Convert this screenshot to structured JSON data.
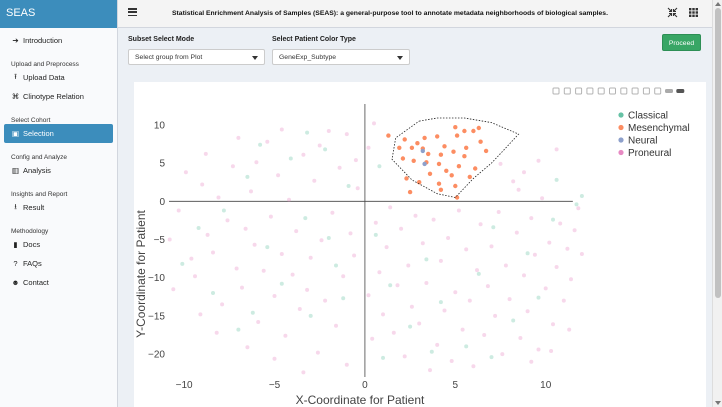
{
  "brand": {
    "title": "SEAS"
  },
  "sidebar": {
    "items": [
      {
        "type": "link",
        "label": "Introduction",
        "icon": "arrow-right-icon",
        "glyph": "➔"
      },
      {
        "type": "section",
        "label": "Upload and Preprocess"
      },
      {
        "type": "link",
        "label": "Upload Data",
        "icon": "upload-icon",
        "glyph": "⭱"
      },
      {
        "type": "link",
        "label": "Clinotype Relation",
        "icon": "network-icon",
        "glyph": "⌘"
      },
      {
        "type": "section",
        "label": "Select Cohort"
      },
      {
        "type": "link",
        "label": "Selection",
        "icon": "image-icon",
        "glyph": "▣",
        "active": true
      },
      {
        "type": "section",
        "label": "Config and Analyze"
      },
      {
        "type": "link",
        "label": "Analysis",
        "icon": "chart-icon",
        "glyph": "▥"
      },
      {
        "type": "section",
        "label": "Insights and Report"
      },
      {
        "type": "link",
        "label": "Result",
        "icon": "download-icon",
        "glyph": "⭳"
      },
      {
        "type": "section",
        "label": "Methodology"
      },
      {
        "type": "link",
        "label": "Docs",
        "icon": "book-icon",
        "glyph": "▮"
      },
      {
        "type": "link",
        "label": "FAQs",
        "icon": "question-icon",
        "glyph": "?"
      },
      {
        "type": "link",
        "label": "Contact",
        "icon": "users-icon",
        "glyph": "☻"
      }
    ]
  },
  "header": {
    "title": "Statistical Enrichment Analysis of Samples (SEAS): a general-purpose tool to annotate metadata neighborhoods of biological samples."
  },
  "controls": {
    "subset_label": "Subset Select Mode",
    "subset_value": "Select group from Plot",
    "color_label": "Select Patient Color Type",
    "color_value": "GeneExp_Subtype",
    "proceed_label": "Proceed"
  },
  "colors": {
    "accent": "#3c8dbc",
    "proceed": "#38a665",
    "classical": "#66c2a5",
    "mesenchymal": "#fc8d62",
    "neural": "#8da0cb",
    "proneural": "#e78ac3"
  },
  "chart_data": {
    "type": "scatter",
    "xlabel": "X-Coordinate for Patient",
    "ylabel": "Y-Coordinate for Patient",
    "xlim": [
      -11.5,
      13.5
    ],
    "ylim": [
      -23,
      13
    ],
    "xticks": [
      -10,
      -5,
      0,
      5,
      10
    ],
    "yticks": [
      10,
      5,
      0,
      -5,
      -10,
      -15,
      -20
    ],
    "grid": false,
    "zero_lines": true,
    "legend": {
      "position": "top-right",
      "entries": [
        "Classical",
        "Mesenchymal",
        "Neural",
        "Proneural"
      ]
    },
    "lasso": [
      [
        3.0,
        10.5
      ],
      [
        4.0,
        10.9
      ],
      [
        5.5,
        10.9
      ],
      [
        7.0,
        10.3
      ],
      [
        8.5,
        8.8
      ],
      [
        7.8,
        7.0
      ],
      [
        7.0,
        5.0
      ],
      [
        6.0,
        3.0
      ],
      [
        5.0,
        0.5
      ],
      [
        4.0,
        1.0
      ],
      [
        2.6,
        2.8
      ],
      [
        1.5,
        5.5
      ],
      [
        1.7,
        8.3
      ]
    ],
    "series": [
      {
        "name": "Mesenchymal",
        "selected": true,
        "points": [
          [
            2.2,
            8.1
          ],
          [
            3.3,
            8.3
          ],
          [
            4.0,
            8.5
          ],
          [
            5.1,
            8.6
          ],
          [
            6.0,
            9.2
          ],
          [
            6.3,
            9.6
          ],
          [
            5.0,
            9.7
          ],
          [
            1.9,
            7.0
          ],
          [
            2.6,
            7.0
          ],
          [
            3.2,
            6.9
          ],
          [
            4.4,
            7.2
          ],
          [
            5.6,
            7.0
          ],
          [
            6.7,
            6.6
          ],
          [
            3.5,
            6.2
          ],
          [
            4.2,
            6.1
          ],
          [
            4.9,
            6.5
          ],
          [
            5.5,
            5.9
          ],
          [
            2.1,
            5.6
          ],
          [
            2.7,
            5.3
          ],
          [
            3.4,
            5.1
          ],
          [
            4.1,
            4.9
          ],
          [
            5.2,
            4.6
          ],
          [
            6.1,
            4.3
          ],
          [
            4.5,
            4.0
          ],
          [
            3.6,
            3.6
          ],
          [
            4.8,
            3.4
          ],
          [
            5.8,
            3.2
          ],
          [
            2.3,
            3.0
          ],
          [
            3.0,
            2.5
          ],
          [
            4.1,
            2.3
          ],
          [
            5.0,
            2.0
          ],
          [
            4.2,
            1.5
          ],
          [
            2.5,
            1.2
          ],
          [
            5.1,
            0.5
          ],
          [
            6.4,
            7.8
          ],
          [
            1.3,
            8.6
          ],
          [
            5.5,
            9.2
          ],
          [
            2.9,
            7.6
          ]
        ]
      },
      {
        "name": "Neural",
        "selected": true,
        "points": [
          [
            3.2,
            6.6
          ],
          [
            3.3,
            4.9
          ]
        ]
      },
      {
        "name": "Classical",
        "selected": false,
        "points": [
          [
            -9.2,
            -3.5
          ],
          [
            -7.8,
            -1.2
          ],
          [
            -6.5,
            3.2
          ],
          [
            -5.4,
            -6.0
          ],
          [
            -4.1,
            5.6
          ],
          [
            -3.3,
            -2.2
          ],
          [
            -2.2,
            6.8
          ],
          [
            -1.6,
            -8.4
          ],
          [
            -0.9,
            2.0
          ],
          [
            0.6,
            -4.4
          ],
          [
            1.4,
            -11.0
          ],
          [
            2.5,
            -16.4
          ],
          [
            3.4,
            -7.6
          ],
          [
            4.2,
            -13.2
          ],
          [
            5.6,
            -19.0
          ],
          [
            6.3,
            -9.5
          ],
          [
            7.1,
            -3.4
          ],
          [
            8.2,
            -15.6
          ],
          [
            9.0,
            -6.8
          ],
          [
            10.4,
            -2.4
          ],
          [
            11.7,
            -0.4
          ],
          [
            12.0,
            0.7
          ],
          [
            10.6,
            2.8
          ],
          [
            -10.1,
            -8.2
          ],
          [
            -8.4,
            -12.0
          ],
          [
            -6.2,
            -14.6
          ],
          [
            -4.6,
            -10.8
          ],
          [
            -3.0,
            -15.0
          ],
          [
            -2.0,
            -4.8
          ],
          [
            1.0,
            -20.5
          ],
          [
            3.7,
            -19.7
          ],
          [
            7.0,
            -20.4
          ],
          [
            9.6,
            -12.6
          ],
          [
            -7.0,
            -16.8
          ],
          [
            -1.2,
            -12.7
          ],
          [
            0.8,
            4.6
          ],
          [
            -3.2,
            9.0
          ],
          [
            -5.8,
            7.4
          ]
        ]
      },
      {
        "name": "Proneural",
        "selected": false,
        "points": [
          [
            -10.8,
            -5.0
          ],
          [
            -10.3,
            -1.2
          ],
          [
            -9.6,
            -7.5
          ],
          [
            -9.4,
            -9.8
          ],
          [
            -9.0,
            2.2
          ],
          [
            -8.7,
            -4.4
          ],
          [
            -8.4,
            -6.7
          ],
          [
            -8.1,
            0.5
          ],
          [
            -7.9,
            -13.5
          ],
          [
            -7.6,
            -2.5
          ],
          [
            -7.3,
            4.6
          ],
          [
            -7.1,
            -8.8
          ],
          [
            -6.8,
            -11.3
          ],
          [
            -6.6,
            -3.6
          ],
          [
            -6.3,
            1.3
          ],
          [
            -6.1,
            -5.7
          ],
          [
            -5.9,
            -15.8
          ],
          [
            -5.6,
            -9.1
          ],
          [
            -5.4,
            7.8
          ],
          [
            -5.2,
            -2.0
          ],
          [
            -5.0,
            -12.4
          ],
          [
            -4.8,
            3.4
          ],
          [
            -4.6,
            -6.9
          ],
          [
            -4.4,
            -17.6
          ],
          [
            -4.2,
            0.2
          ],
          [
            -4.0,
            -9.6
          ],
          [
            -3.8,
            -3.9
          ],
          [
            -3.6,
            -14.1
          ],
          [
            -3.4,
            6.1
          ],
          [
            -3.2,
            -11.6
          ],
          [
            -3.0,
            -7.4
          ],
          [
            -2.8,
            2.7
          ],
          [
            -2.6,
            -19.8
          ],
          [
            -2.4,
            -5.1
          ],
          [
            -2.2,
            -13.0
          ],
          [
            -2.0,
            9.2
          ],
          [
            -1.8,
            -1.5
          ],
          [
            -1.6,
            -16.3
          ],
          [
            -1.4,
            4.4
          ],
          [
            -1.2,
            -9.8
          ],
          [
            -1.0,
            -21.4
          ],
          [
            -0.8,
            -4.2
          ],
          [
            -0.6,
            -7.1
          ],
          [
            -0.4,
            1.7
          ],
          [
            0.2,
            -12.3
          ],
          [
            0.4,
            -18.0
          ],
          [
            0.6,
            -2.8
          ],
          [
            0.8,
            -9.3
          ],
          [
            1.0,
            -14.8
          ],
          [
            1.2,
            -6.0
          ],
          [
            1.4,
            -0.8
          ],
          [
            1.6,
            -17.2
          ],
          [
            1.8,
            -11.0
          ],
          [
            2.0,
            -3.6
          ],
          [
            2.2,
            -20.3
          ],
          [
            2.4,
            -8.4
          ],
          [
            2.6,
            -13.8
          ],
          [
            2.8,
            -1.9
          ],
          [
            3.0,
            -16.0
          ],
          [
            3.2,
            -5.5
          ],
          [
            3.4,
            -10.7
          ],
          [
            3.6,
            -22.1
          ],
          [
            3.8,
            -2.4
          ],
          [
            4.0,
            -18.8
          ],
          [
            4.2,
            -7.8
          ],
          [
            4.4,
            -14.3
          ],
          [
            4.6,
            -4.8
          ],
          [
            4.8,
            -20.9
          ],
          [
            5.0,
            -11.9
          ],
          [
            5.2,
            -1.2
          ],
          [
            5.4,
            -16.8
          ],
          [
            5.6,
            -6.3
          ],
          [
            5.8,
            -13.0
          ],
          [
            6.0,
            -21.6
          ],
          [
            6.2,
            -9.0
          ],
          [
            6.4,
            -3.0
          ],
          [
            6.6,
            -17.5
          ],
          [
            6.8,
            -11.1
          ],
          [
            7.0,
            -5.9
          ],
          [
            7.2,
            -15.0
          ],
          [
            7.4,
            -1.4
          ],
          [
            7.6,
            -20.0
          ],
          [
            7.8,
            -8.4
          ],
          [
            8.0,
            -12.8
          ],
          [
            8.2,
            2.6
          ],
          [
            8.4,
            -4.1
          ],
          [
            8.6,
            -17.9
          ],
          [
            8.8,
            -9.7
          ],
          [
            9.0,
            -14.4
          ],
          [
            9.2,
            -2.2
          ],
          [
            9.4,
            -7.0
          ],
          [
            9.6,
            -19.4
          ],
          [
            9.8,
            0.4
          ],
          [
            10.0,
            -11.4
          ],
          [
            10.2,
            -5.4
          ],
          [
            10.4,
            -16.1
          ],
          [
            10.6,
            -8.6
          ],
          [
            10.8,
            -2.9
          ],
          [
            11.0,
            -13.0
          ],
          [
            11.2,
            -6.2
          ],
          [
            11.4,
            -10.2
          ],
          [
            11.6,
            -3.8
          ],
          [
            11.8,
            -0.9
          ],
          [
            12.0,
            -6.9
          ],
          [
            8.8,
            3.8
          ],
          [
            9.6,
            5.3
          ],
          [
            10.6,
            6.8
          ],
          [
            7.5,
            4.9
          ],
          [
            8.5,
            1.5
          ],
          [
            -8.8,
            6.2
          ],
          [
            -7.0,
            8.3
          ],
          [
            -6.0,
            5.1
          ],
          [
            -4.6,
            9.4
          ],
          [
            -2.5,
            7.3
          ],
          [
            -1.0,
            8.8
          ],
          [
            -0.5,
            5.4
          ],
          [
            0.2,
            7.0
          ],
          [
            0.5,
            10.2
          ],
          [
            -9.9,
            3.8
          ],
          [
            -10.6,
            -11.5
          ],
          [
            -9.1,
            -14.8
          ],
          [
            -8.2,
            -17.2
          ],
          [
            -6.5,
            -19.1
          ],
          [
            -5.0,
            -20.6
          ],
          [
            -3.4,
            -22.4
          ],
          [
            9.2,
            -21.0
          ],
          [
            10.3,
            -19.6
          ],
          [
            11.3,
            -16.8
          ]
        ]
      }
    ]
  }
}
